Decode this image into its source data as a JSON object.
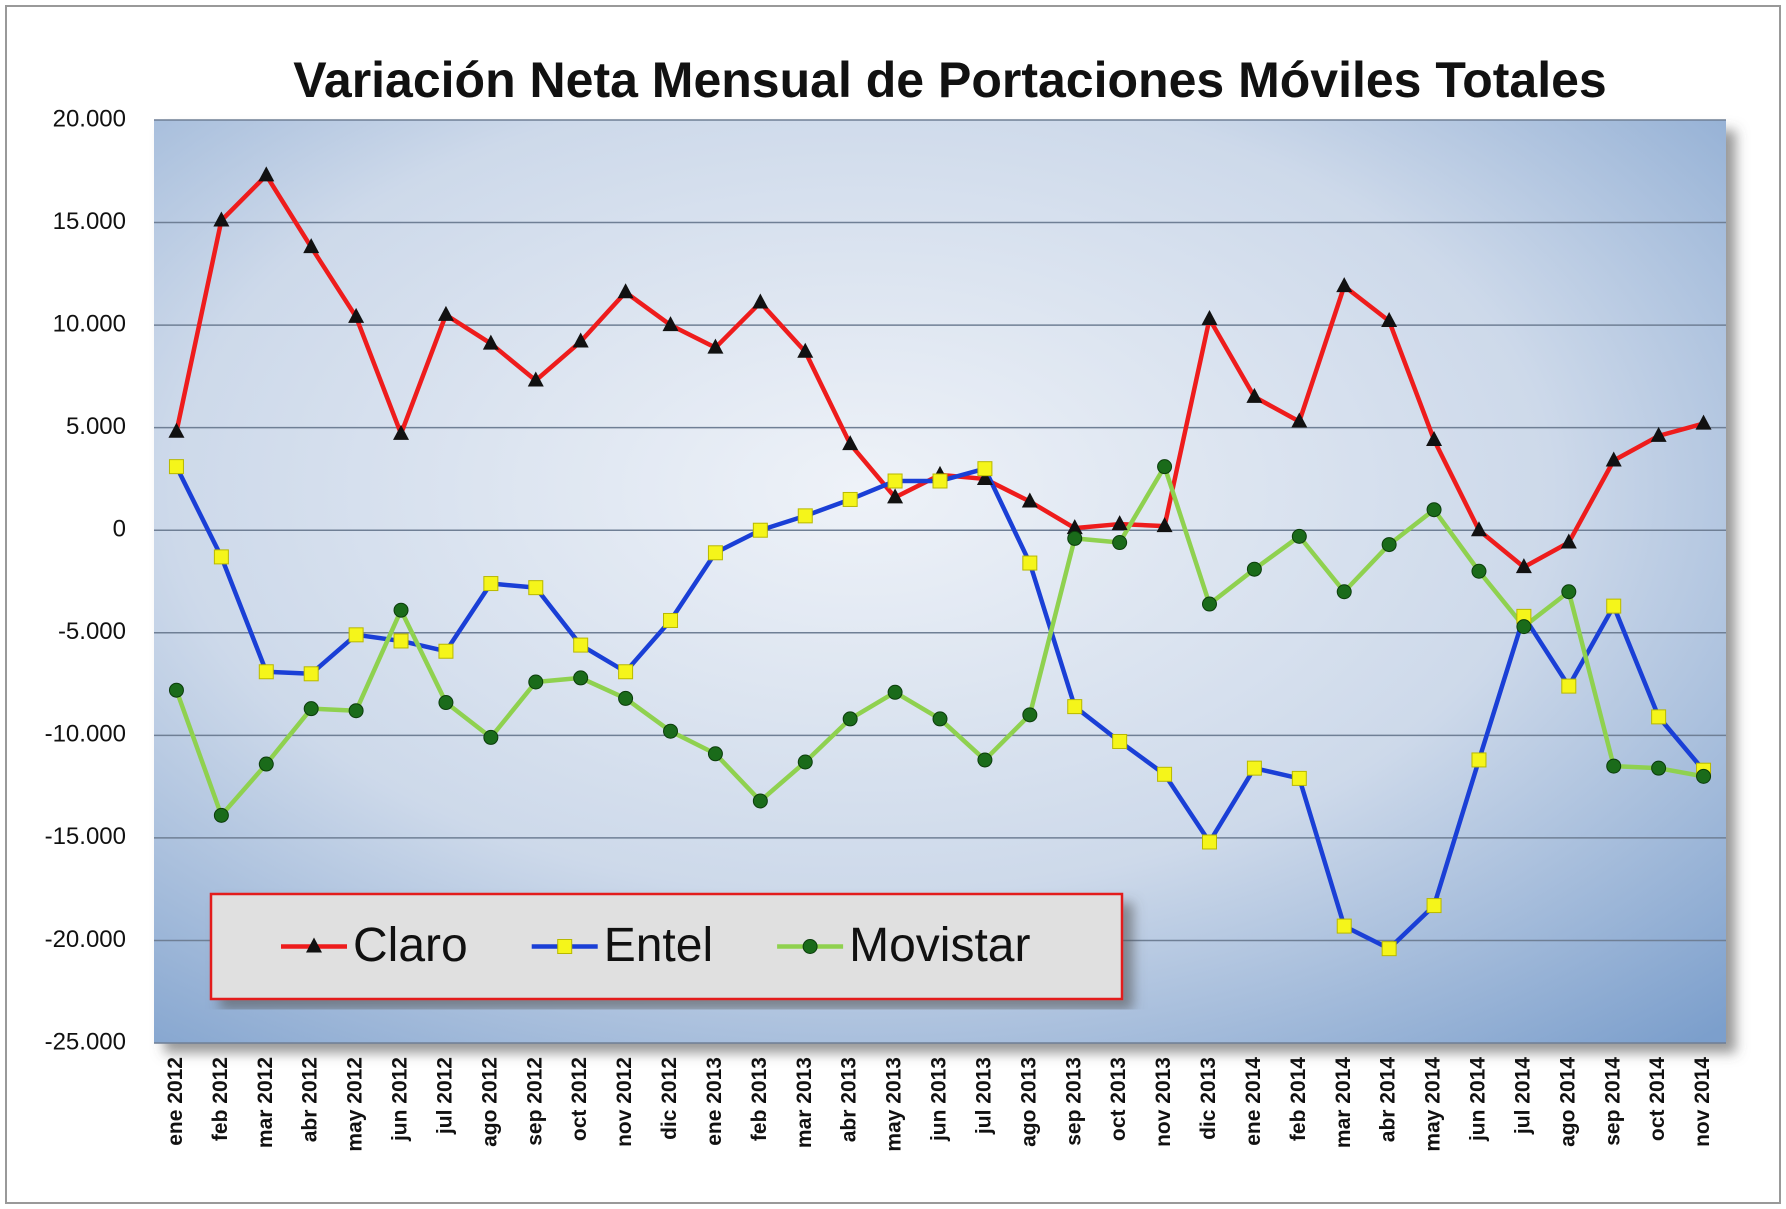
{
  "chart_data": {
    "type": "line",
    "title": "Variación Neta Mensual de Portaciones Móviles Totales",
    "categories": [
      "ene 2012",
      "feb 2012",
      "mar 2012",
      "abr 2012",
      "may 2012",
      "jun 2012",
      "jul 2012",
      "ago 2012",
      "sep 2012",
      "oct 2012",
      "nov 2012",
      "dic 2012",
      "ene 2013",
      "feb 2013",
      "mar 2013",
      "abr 2013",
      "may 2013",
      "jun 2013",
      "jul 2013",
      "ago 2013",
      "sep 2013",
      "oct 2013",
      "nov 2013",
      "dic 2013",
      "ene 2014",
      "feb 2014",
      "mar 2014",
      "abr 2014",
      "may 2014",
      "jun 2014",
      "jul 2014",
      "ago 2014",
      "sep 2014",
      "oct 2014",
      "nov 2014"
    ],
    "series": [
      {
        "name": "Claro",
        "color": "#ee1c1c",
        "marker": "triangle",
        "marker_color": "#111111",
        "values": [
          4800,
          15100,
          17300,
          13800,
          10400,
          4700,
          10500,
          9100,
          7300,
          9200,
          11600,
          10000,
          8900,
          11100,
          8700,
          4200,
          1600,
          2700,
          2500,
          1400,
          100,
          300,
          200,
          10300,
          6500,
          5300,
          11900,
          10200,
          4400,
          0,
          -1800,
          -600,
          3400,
          4600,
          5200
        ]
      },
      {
        "name": "Entel",
        "color": "#1a3fd6",
        "marker": "square",
        "marker_color": "#f5f51a",
        "values": [
          3100,
          -1300,
          -6900,
          -7000,
          -5100,
          -5400,
          -5900,
          -2600,
          -2800,
          -5600,
          -6900,
          -4400,
          -1100,
          0,
          700,
          1500,
          2400,
          2400,
          3000,
          -1600,
          -8600,
          -10300,
          -11900,
          -15200,
          -11600,
          -12100,
          -19300,
          -20400,
          -18300,
          -11200,
          -4200,
          -7600,
          -3700,
          -9100,
          -11700
        ]
      },
      {
        "name": "Movistar",
        "color": "#8fd14f",
        "marker": "circle",
        "marker_color": "#1a6b1a",
        "values": [
          -7800,
          -13900,
          -11400,
          -8700,
          -8800,
          -3900,
          -8400,
          -10100,
          -7400,
          -7200,
          -8200,
          -9800,
          -10900,
          -13200,
          -11300,
          -9200,
          -7900,
          -9200,
          -11200,
          -9000,
          -400,
          -600,
          3100,
          -3600,
          -1900,
          -300,
          -3000,
          -700,
          1000,
          -2000,
          -4700,
          -3000,
          -11500,
          -11600,
          -12000
        ]
      }
    ],
    "ylim": [
      -25000,
      20000
    ],
    "yticks": [
      {
        "value": -25000,
        "label": "-25.000"
      },
      {
        "value": -20000,
        "label": "-20.000"
      },
      {
        "value": -15000,
        "label": "-15.000"
      },
      {
        "value": -10000,
        "label": "-10.000"
      },
      {
        "value": -5000,
        "label": "-5.000"
      },
      0,
      {
        "value": 5000,
        "label": "5.000"
      },
      {
        "value": 10000,
        "label": "10.000"
      },
      {
        "value": 15000,
        "label": "15.000"
      },
      {
        "value": 20000,
        "label": "20.000"
      }
    ],
    "grid": true,
    "legend": "lower left"
  }
}
